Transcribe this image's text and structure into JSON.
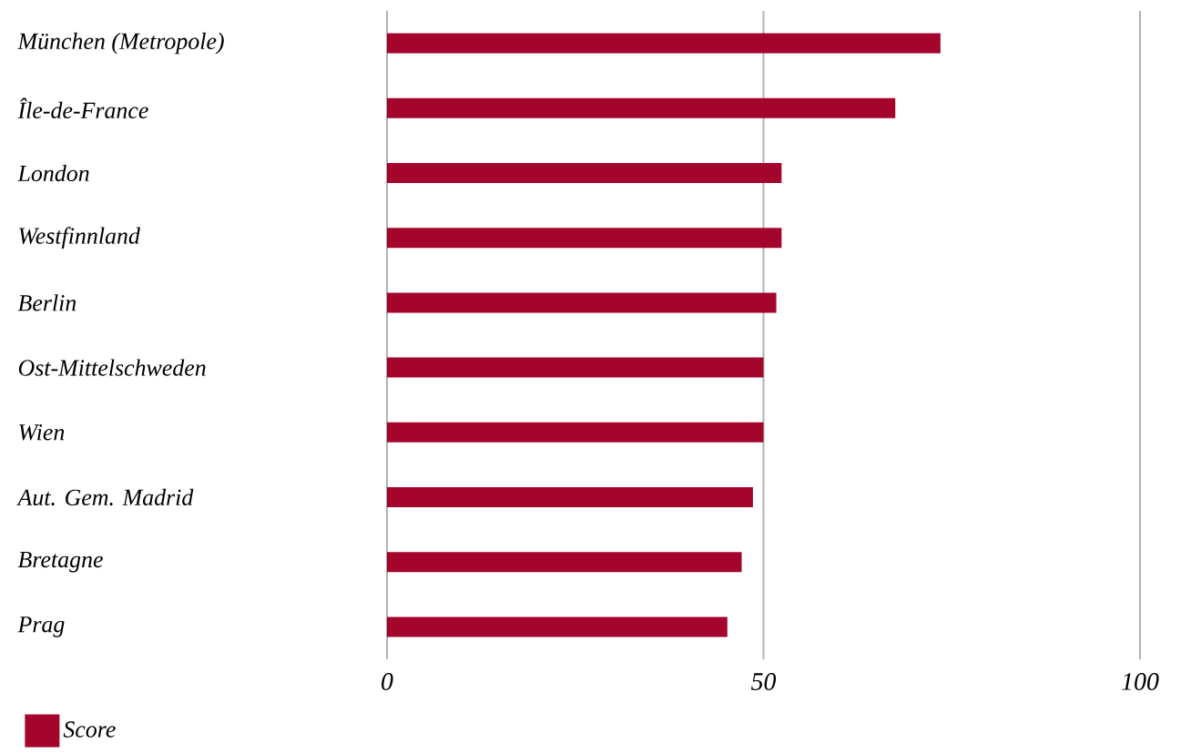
{
  "chart_data": {
    "type": "bar",
    "orientation": "horizontal",
    "categories": [
      "München (Metropole)",
      "Île-de-France",
      "London",
      "Westfinnland",
      "Berlin",
      "Ost-Mittelschweden",
      "Wien",
      "Aut. Gem. Madrid",
      "Bretagne",
      "Prag"
    ],
    "series": [
      {
        "name": "Score",
        "color": "#a3052d",
        "values": [
          73.5,
          67.5,
          52.4,
          52.4,
          51.7,
          50.0,
          50.0,
          48.6,
          47.1,
          45.2
        ]
      }
    ],
    "xlim": [
      0,
      100
    ],
    "xticks": [
      0,
      50,
      100
    ],
    "grid": "x",
    "legend": "bottom left"
  }
}
